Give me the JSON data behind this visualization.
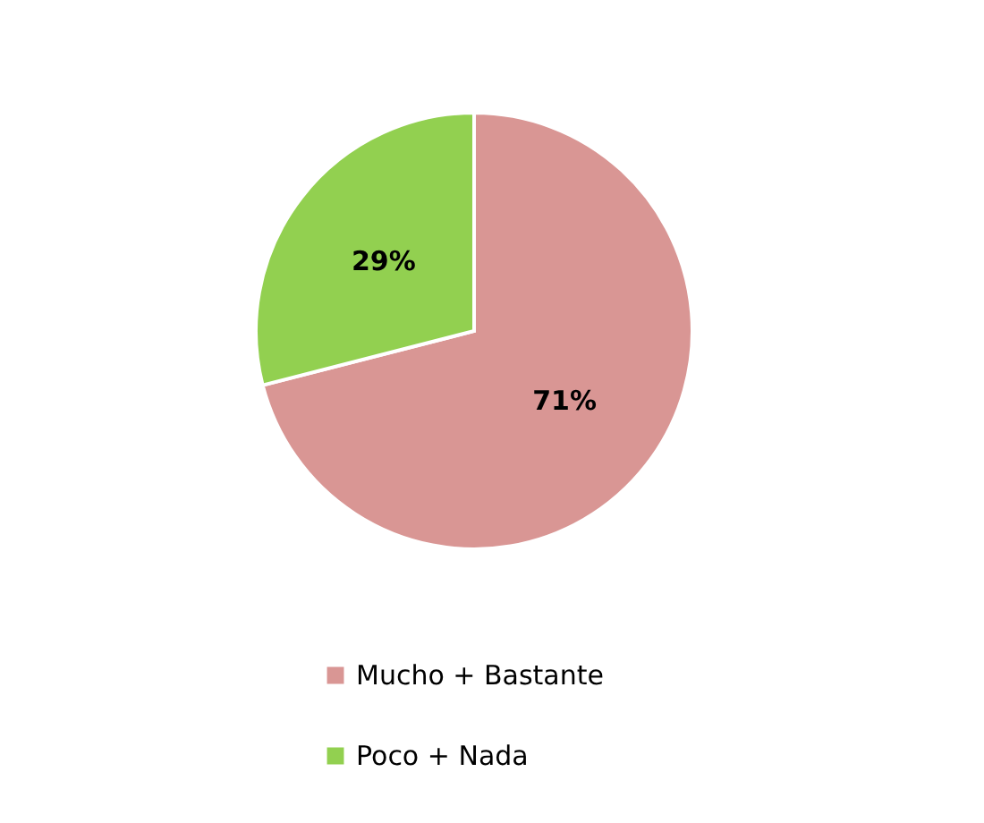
{
  "chart_data": {
    "type": "pie",
    "categories": [
      "Mucho + Bastante",
      "Poco + Nada"
    ],
    "values": [
      71,
      29
    ],
    "colors": [
      "#d99694",
      "#92d050"
    ],
    "value_labels": [
      "71%",
      "29%"
    ],
    "legend": "bottom"
  }
}
